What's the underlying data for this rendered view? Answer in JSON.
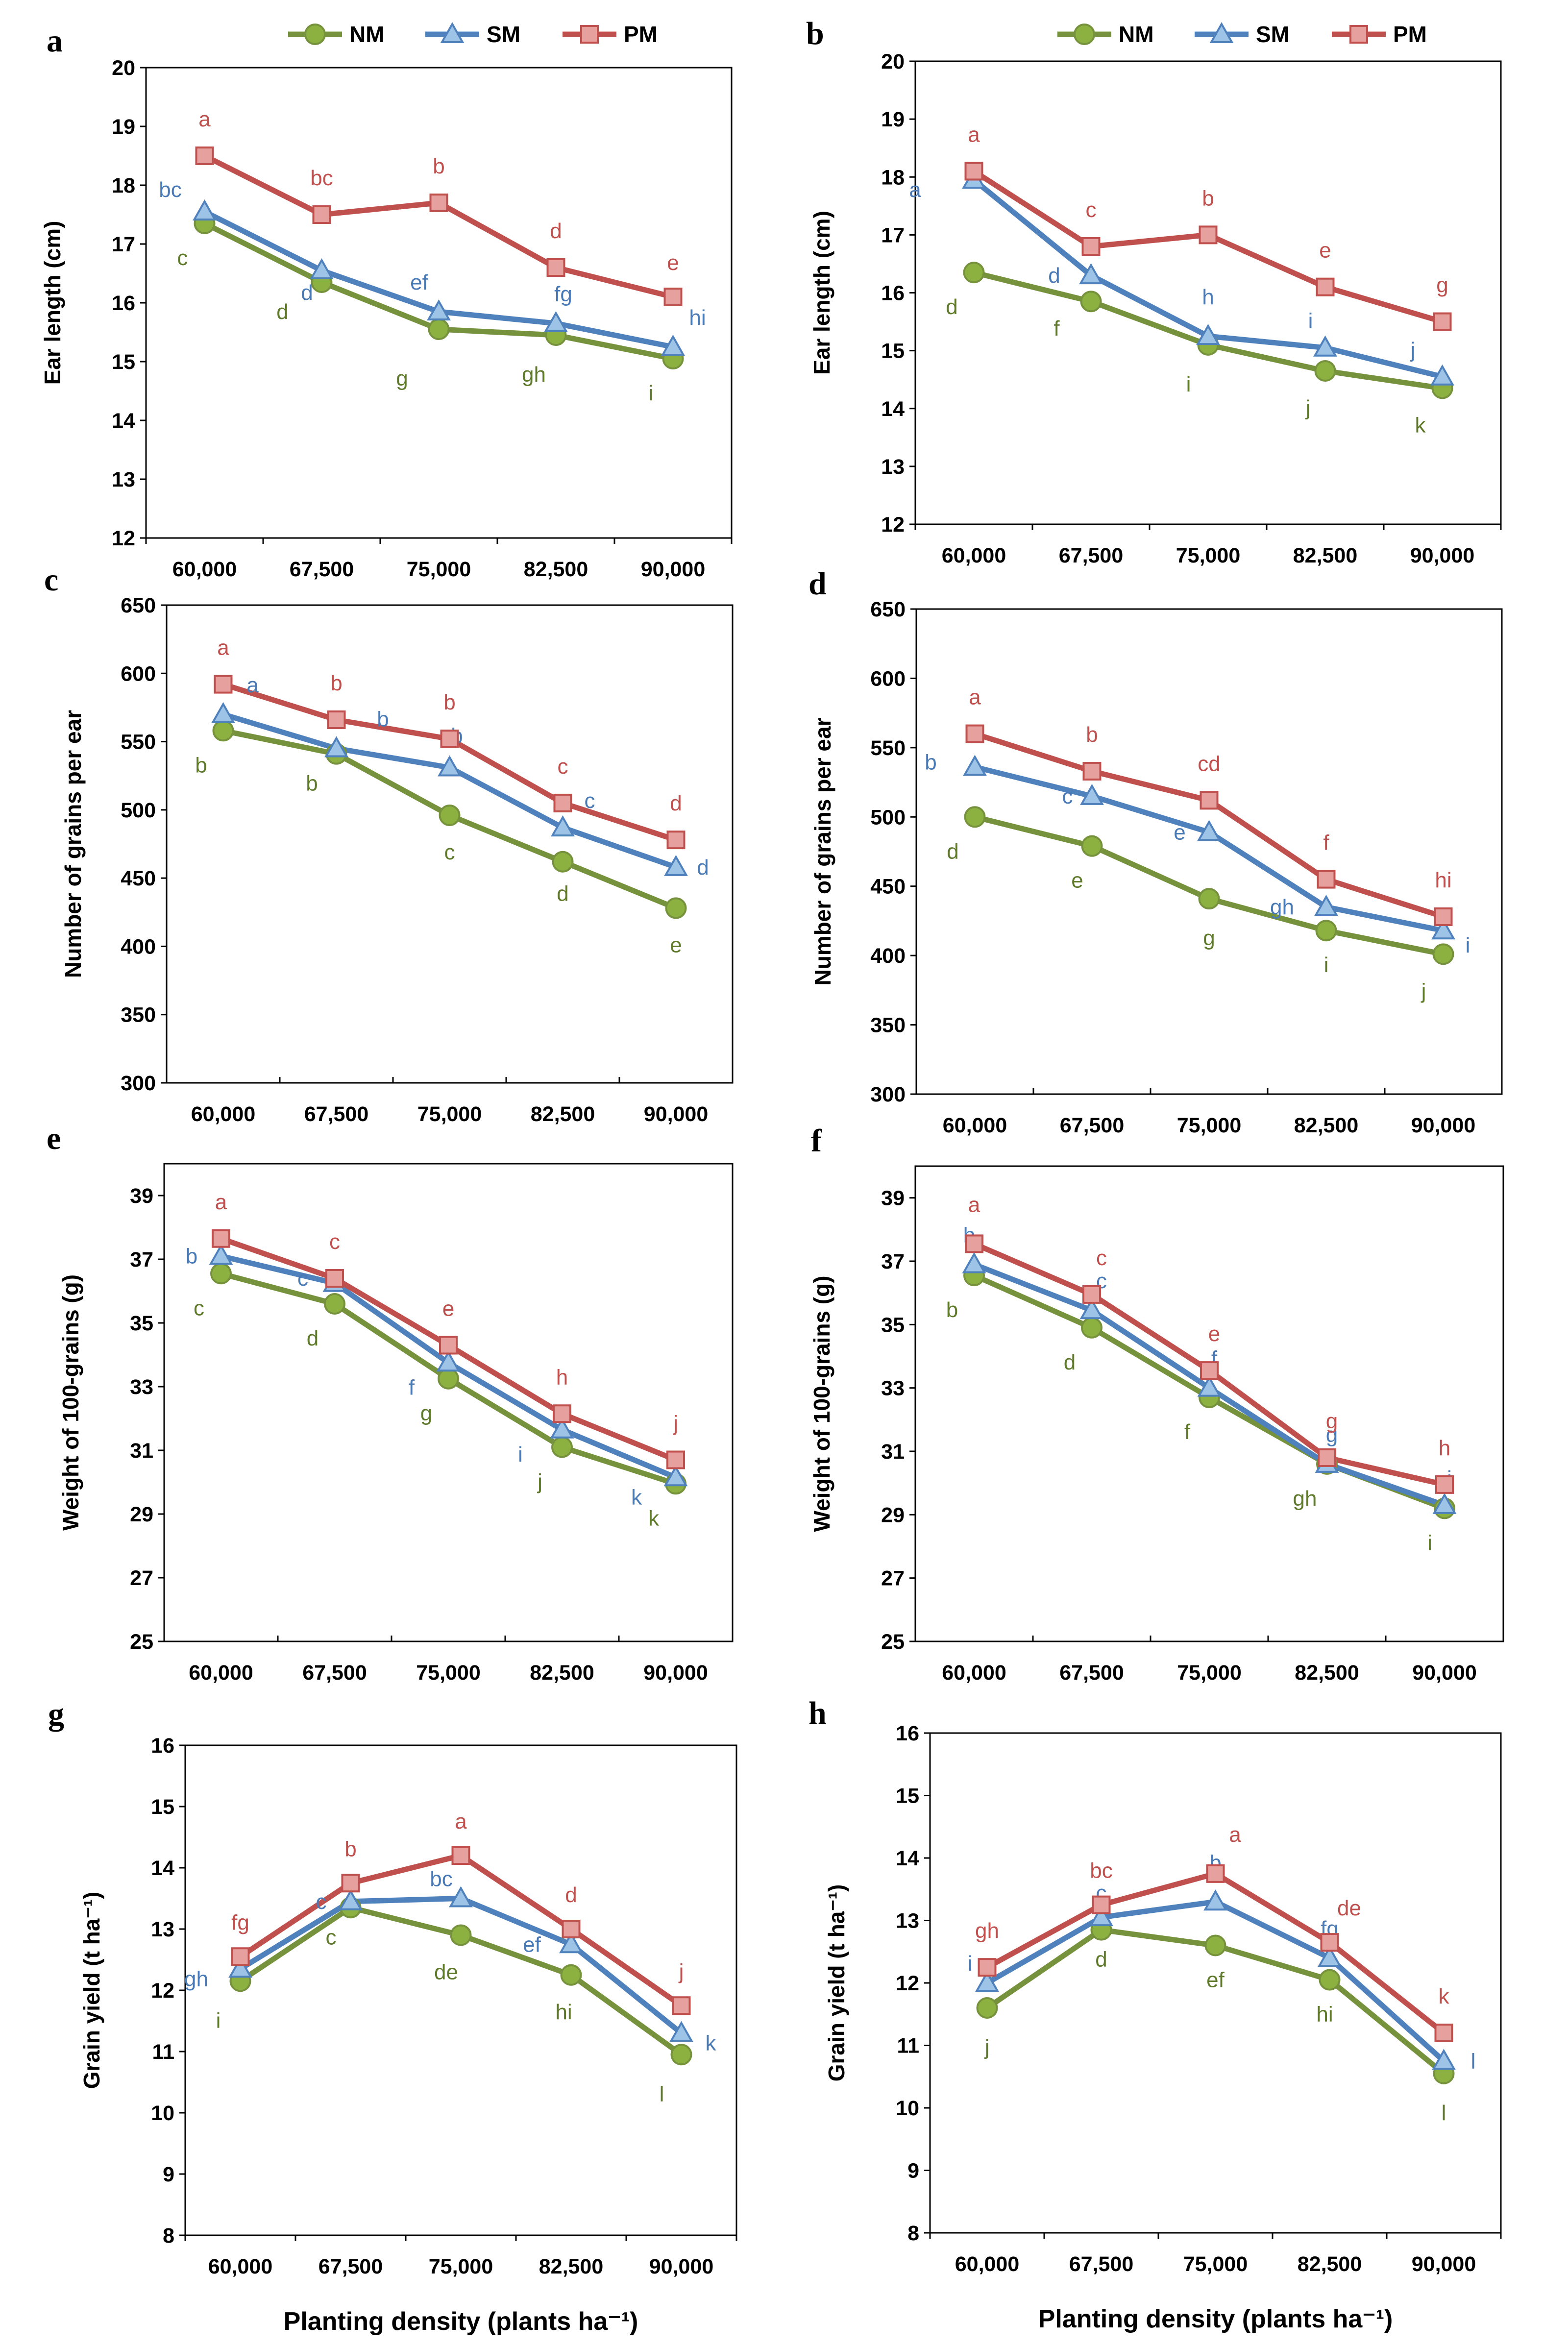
{
  "chart_data": [
    {
      "panel": "a",
      "type": "line",
      "title": "",
      "xlabel": "",
      "ylabel": "Ear length (cm)",
      "categories": [
        "60,000",
        "67,500",
        "75,000",
        "82,500",
        "90,000"
      ],
      "ylim": [
        12,
        20
      ],
      "ystep": 1,
      "show_legend": true,
      "series": [
        {
          "name": "NM",
          "values": [
            17.35,
            16.35,
            15.55,
            15.45,
            15.05
          ],
          "labels": [
            "c",
            "d",
            "g",
            "gh",
            "i"
          ]
        },
        {
          "name": "SM",
          "values": [
            17.55,
            16.55,
            15.85,
            15.65,
            15.25
          ],
          "labels": [
            "bc",
            "d",
            "ef",
            "fg",
            "hi"
          ]
        },
        {
          "name": "PM",
          "values": [
            18.5,
            17.5,
            17.7,
            16.6,
            16.1
          ],
          "labels": [
            "a",
            "bc",
            "b",
            "d",
            "e"
          ]
        }
      ]
    },
    {
      "panel": "b",
      "type": "line",
      "title": "",
      "xlabel": "",
      "ylabel": "Ear length (cm)",
      "categories": [
        "60,000",
        "67,500",
        "75,000",
        "82,500",
        "90,000"
      ],
      "ylim": [
        12,
        20
      ],
      "ystep": 1,
      "show_legend": true,
      "series": [
        {
          "name": "NM",
          "values": [
            16.35,
            15.85,
            15.1,
            14.65,
            14.35
          ],
          "labels": [
            "d",
            "f",
            "i",
            "j",
            "k"
          ]
        },
        {
          "name": "SM",
          "values": [
            17.95,
            16.3,
            15.25,
            15.05,
            14.55
          ],
          "labels": [
            "a",
            "d",
            "h",
            "i",
            "j"
          ]
        },
        {
          "name": "PM",
          "values": [
            18.1,
            16.8,
            17.0,
            16.1,
            15.5
          ],
          "labels": [
            "a",
            "c",
            "b",
            "e",
            "g"
          ]
        }
      ]
    },
    {
      "panel": "c",
      "type": "line",
      "title": "",
      "xlabel": "",
      "ylabel": "Number of grains per ear",
      "categories": [
        "60,000",
        "67,500",
        "75,000",
        "82,500",
        "90,000"
      ],
      "ylim": [
        300,
        650
      ],
      "ystep": 50,
      "show_legend": false,
      "series": [
        {
          "name": "NM",
          "values": [
            558,
            541,
            496,
            462,
            428
          ],
          "labels": [
            "b",
            "b",
            "c",
            "d",
            "e"
          ]
        },
        {
          "name": "SM",
          "values": [
            570,
            545,
            531,
            487,
            458
          ],
          "labels": [
            "a",
            "b",
            "b",
            "c",
            "d"
          ]
        },
        {
          "name": "PM",
          "values": [
            592,
            566,
            552,
            505,
            478
          ],
          "labels": [
            "a",
            "b",
            "b",
            "c",
            "d"
          ]
        }
      ]
    },
    {
      "panel": "d",
      "type": "line",
      "title": "",
      "xlabel": "",
      "ylabel": "Number of grains per ear",
      "categories": [
        "60,000",
        "67,500",
        "75,000",
        "82,500",
        "90,000"
      ],
      "ylim": [
        300,
        650
      ],
      "ystep": 50,
      "show_legend": false,
      "series": [
        {
          "name": "NM",
          "values": [
            500,
            479,
            441,
            418,
            401
          ],
          "labels": [
            "d",
            "e",
            "g",
            "i",
            "j"
          ]
        },
        {
          "name": "SM",
          "values": [
            536,
            515,
            489,
            435,
            418
          ],
          "labels": [
            "b",
            "c",
            "e",
            "gh",
            "i"
          ]
        },
        {
          "name": "PM",
          "values": [
            560,
            533,
            512,
            455,
            428
          ],
          "labels": [
            "a",
            "b",
            "cd",
            "f",
            "hi"
          ]
        }
      ]
    },
    {
      "panel": "e",
      "type": "line",
      "title": "",
      "xlabel": "",
      "ylabel": "Weight of 100-grains (g)",
      "categories": [
        "60,000",
        "67,500",
        "75,000",
        "82,500",
        "90,000"
      ],
      "ylim": [
        25,
        40
      ],
      "ystep": 2,
      "show_legend": false,
      "series": [
        {
          "name": "NM",
          "values": [
            36.55,
            35.6,
            33.25,
            31.1,
            29.95
          ],
          "labels": [
            "c",
            "d",
            "g",
            "j",
            "k"
          ]
        },
        {
          "name": "SM",
          "values": [
            37.1,
            36.25,
            33.75,
            31.65,
            30.15
          ],
          "labels": [
            "b",
            "c",
            "f",
            "i",
            "k"
          ]
        },
        {
          "name": "PM",
          "values": [
            37.65,
            36.4,
            34.3,
            32.15,
            30.7
          ],
          "labels": [
            "a",
            "c",
            "e",
            "h",
            "j"
          ]
        }
      ]
    },
    {
      "panel": "f",
      "type": "line",
      "title": "",
      "xlabel": "",
      "ylabel": "Weight of 100-grains (g)",
      "categories": [
        "60,000",
        "67,500",
        "75,000",
        "82,500",
        "90,000"
      ],
      "ylim": [
        25,
        40
      ],
      "ystep": 2,
      "show_legend": false,
      "series": [
        {
          "name": "NM",
          "values": [
            36.55,
            34.9,
            32.7,
            30.6,
            29.2
          ],
          "labels": [
            "b",
            "d",
            "f",
            "gh",
            "i"
          ]
        },
        {
          "name": "SM",
          "values": [
            36.9,
            35.45,
            33.0,
            30.6,
            29.3
          ],
          "labels": [
            "b",
            "c",
            "f",
            "g",
            "i"
          ]
        },
        {
          "name": "PM",
          "values": [
            37.55,
            35.95,
            33.55,
            30.8,
            29.95
          ],
          "labels": [
            "a",
            "c",
            "e",
            "g",
            "h"
          ]
        }
      ]
    },
    {
      "panel": "g",
      "type": "line",
      "title": "",
      "xlabel": "Planting density (plants ha⁻¹)",
      "ylabel": "Grain yield (t ha⁻¹)",
      "categories": [
        "60,000",
        "67,500",
        "75,000",
        "82,500",
        "90,000"
      ],
      "ylim": [
        8,
        16
      ],
      "ystep": 1,
      "show_legend": false,
      "series": [
        {
          "name": "NM",
          "values": [
            12.15,
            13.35,
            12.9,
            12.25,
            10.95
          ],
          "labels": [
            "i",
            "c",
            "de",
            "hi",
            "l"
          ]
        },
        {
          "name": "SM",
          "values": [
            12.35,
            13.45,
            13.5,
            12.75,
            11.3
          ],
          "labels": [
            "gh",
            "c",
            "bc",
            "ef",
            "k"
          ]
        },
        {
          "name": "PM",
          "values": [
            12.55,
            13.75,
            14.2,
            13.0,
            11.75
          ],
          "labels": [
            "fg",
            "b",
            "a",
            "d",
            "j"
          ]
        }
      ]
    },
    {
      "panel": "h",
      "type": "line",
      "title": "",
      "xlabel": "Planting density (plants ha⁻¹)",
      "ylabel": "Grain yield (t ha⁻¹)",
      "categories": [
        "60,000",
        "67,500",
        "75,000",
        "82,500",
        "90,000"
      ],
      "ylim": [
        8,
        16
      ],
      "ystep": 1,
      "show_legend": false,
      "series": [
        {
          "name": "NM",
          "values": [
            11.6,
            12.85,
            12.6,
            12.05,
            10.55
          ],
          "labels": [
            "j",
            "d",
            "ef",
            "hi",
            "l"
          ]
        },
        {
          "name": "SM",
          "values": [
            12.0,
            13.05,
            13.3,
            12.4,
            10.75
          ],
          "labels": [
            "i",
            "c",
            "b",
            "fg",
            "l"
          ]
        },
        {
          "name": "PM",
          "values": [
            12.25,
            13.25,
            13.75,
            12.65,
            11.2
          ],
          "labels": [
            "gh",
            "bc",
            "a",
            "de",
            "k"
          ]
        }
      ]
    }
  ],
  "legend": [
    {
      "name": "NM",
      "color": "#76923c",
      "marker": "circle",
      "fill": "#8db140"
    },
    {
      "name": "SM",
      "color": "#4f81bd",
      "marker": "triangle",
      "fill": "#9dc3e6"
    },
    {
      "name": "PM",
      "color": "#c0504d",
      "marker": "square",
      "fill": "#e6a09e"
    }
  ],
  "label_colors": {
    "NM": "#5f7a2a",
    "SM": "#4a7ab6",
    "PM": "#c0504d"
  }
}
